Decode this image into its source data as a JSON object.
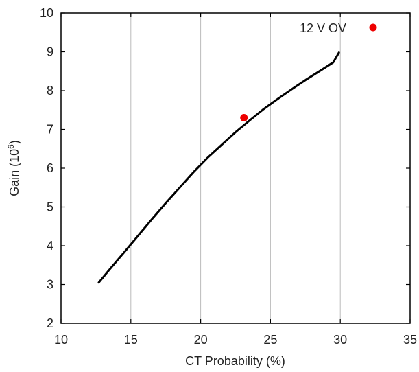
{
  "chart_data": {
    "type": "line",
    "title": "",
    "xlabel": "CT Probability (%)",
    "ylabel_base": "Gain (10",
    "ylabel_exp": "6",
    "ylabel_close": ")",
    "xlim": [
      10,
      35
    ],
    "ylim": [
      2,
      10
    ],
    "xticks": [
      10,
      15,
      20,
      25,
      30,
      35
    ],
    "yticks": [
      2,
      3,
      4,
      5,
      6,
      7,
      8,
      9,
      10
    ],
    "grid": "vertical",
    "series": [
      {
        "type": "line",
        "color": "#000000",
        "x": [
          12.7,
          13.5,
          14.5,
          15.5,
          16.5,
          17.5,
          18.5,
          19.5,
          20.5,
          21.5,
          22.5,
          23.5,
          24.5,
          25.5,
          26.5,
          27.5,
          28.5,
          29.5,
          29.9
        ],
        "y": [
          3.05,
          3.4,
          3.82,
          4.25,
          4.68,
          5.1,
          5.5,
          5.9,
          6.27,
          6.6,
          6.93,
          7.23,
          7.52,
          7.78,
          8.03,
          8.27,
          8.5,
          8.73,
          8.98
        ]
      },
      {
        "name": "12 V OV",
        "type": "scatter",
        "color": "#ee0000",
        "x": [
          23.1
        ],
        "y": [
          7.3
        ]
      }
    ],
    "legend": {
      "label": "12 V OV",
      "position": "top-right"
    }
  }
}
